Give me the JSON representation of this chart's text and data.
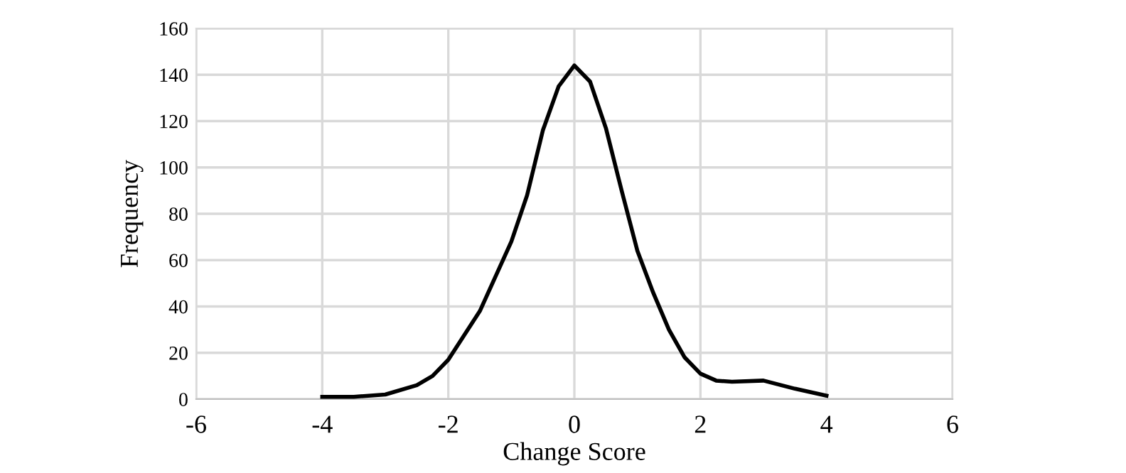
{
  "chart_data": {
    "type": "line",
    "xlabel": "Change Score",
    "ylabel": "Frequency",
    "series": [
      {
        "color": "#000000",
        "x": [
          -4,
          -3.5,
          -3,
          -2.5,
          -2.25,
          -2,
          -1.5,
          -1,
          -0.75,
          -0.5,
          -0.25,
          0,
          0.25,
          0.5,
          0.75,
          1,
          1.25,
          1.5,
          1.75,
          2,
          2.25,
          2.5,
          3,
          3.5,
          4
        ],
        "values": [
          1,
          1,
          2,
          6,
          10,
          17,
          38,
          68,
          88,
          116,
          135,
          144,
          137,
          117,
          90,
          64,
          46,
          30,
          18,
          11,
          8,
          7.5,
          8,
          4.5,
          1.5
        ]
      }
    ],
    "xlim": [
      -6,
      6
    ],
    "xticks": [
      -6,
      -4,
      -2,
      0,
      2,
      4,
      6
    ],
    "ylim": [
      0,
      160
    ],
    "yticks": [
      0,
      20,
      40,
      60,
      80,
      100,
      120,
      140,
      160
    ],
    "grid": true,
    "line_style": "solid",
    "marker": "none"
  }
}
